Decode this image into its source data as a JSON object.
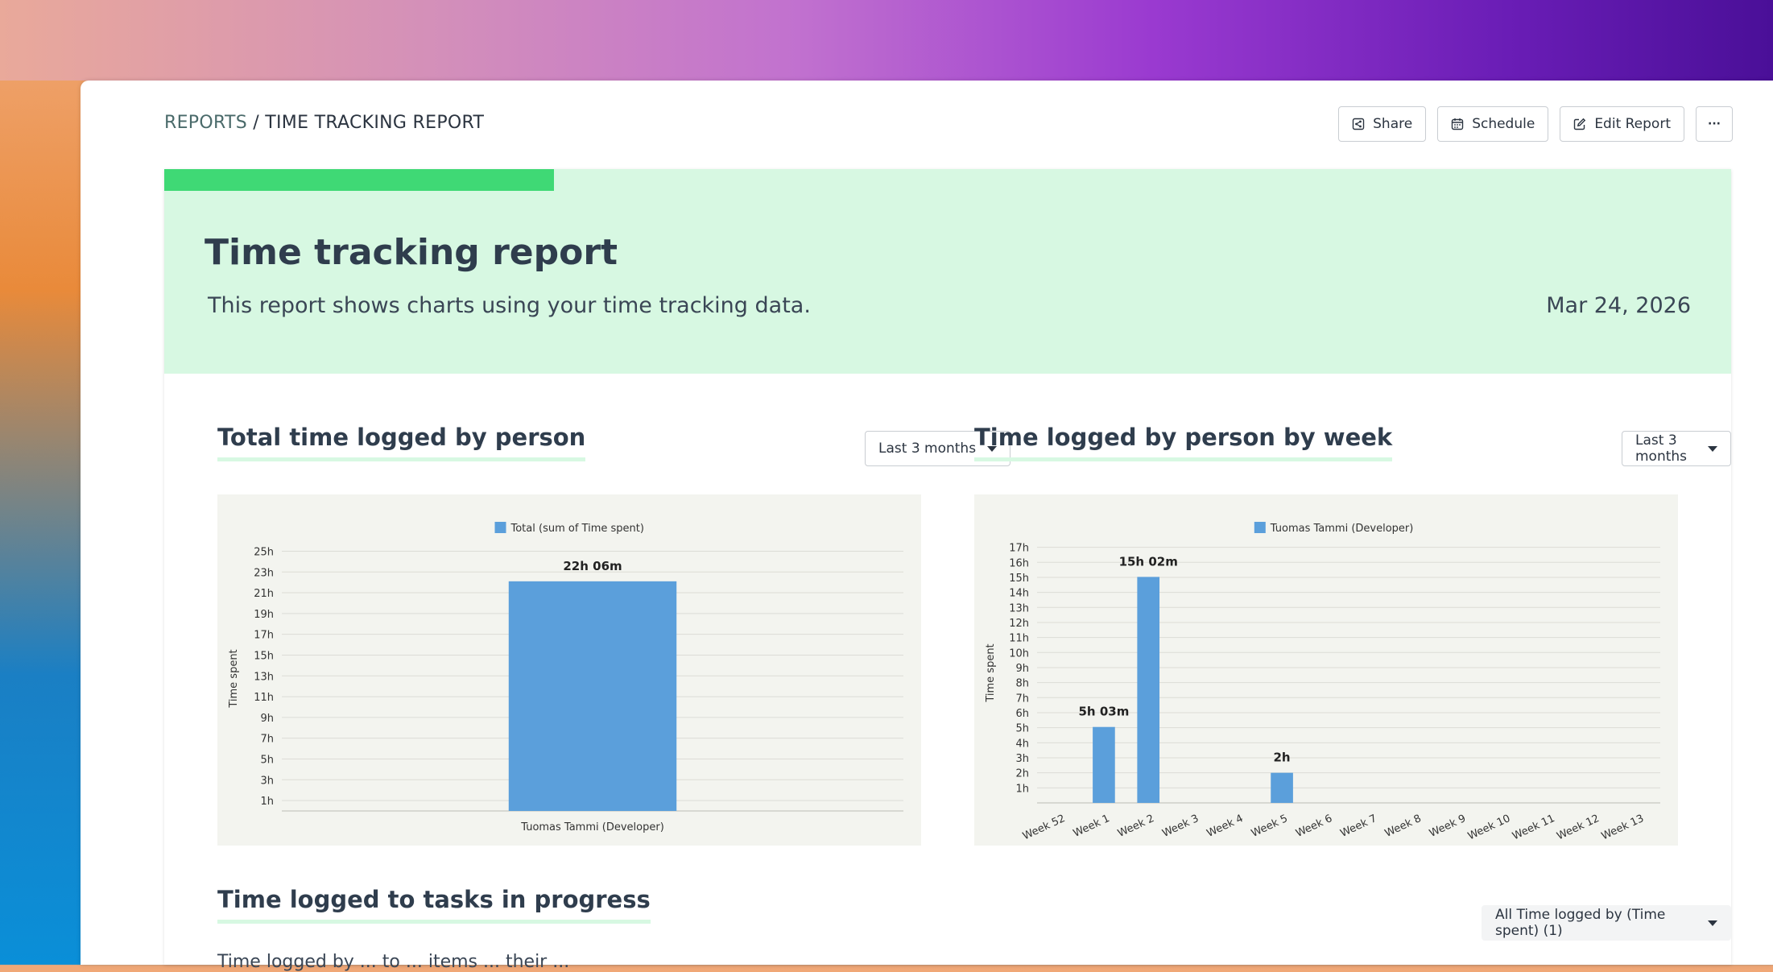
{
  "breadcrumb": {
    "parent": "REPORTS",
    "separator": " / ",
    "current": "TIME TRACKING REPORT"
  },
  "toolbar": {
    "share": "Share",
    "schedule": "Schedule",
    "edit": "Edit Report",
    "more": "···"
  },
  "hero": {
    "title": "Time tracking report",
    "description": "This report shows charts using your time tracking data.",
    "date": "Mar 24, 2026",
    "accent_color": "#3fd975",
    "background_color": "#d7f8e2"
  },
  "sections": {
    "total": {
      "title": "Total time logged by person",
      "range": "Last 3 months"
    },
    "weekly": {
      "title": "Time logged by person by week",
      "range": "Last 3 months"
    },
    "tasks": {
      "title": "Time logged to tasks in progress",
      "filter": "All Time logged by (Time spent) (1)",
      "subtitle": "Time logged by ... to ... items ... their ..."
    }
  },
  "chart_data": [
    {
      "type": "bar",
      "legend": "Total (sum of Time spent)",
      "ylabel": "Time spent",
      "yticks": [
        "1h",
        "3h",
        "5h",
        "7h",
        "9h",
        "11h",
        "13h",
        "15h",
        "17h",
        "19h",
        "21h",
        "23h",
        "25h"
      ],
      "ylim": [
        0,
        25.5
      ],
      "categories": [
        "Tuomas Tammi (Developer)"
      ],
      "values": [
        22.1
      ],
      "labels": [
        "22h 06m"
      ],
      "color": "#5b9fdb"
    },
    {
      "type": "bar",
      "legend": "Tuomas Tammi (Developer)",
      "ylabel": "Time spent",
      "yticks": [
        "1h",
        "2h",
        "3h",
        "4h",
        "5h",
        "6h",
        "7h",
        "8h",
        "9h",
        "10h",
        "11h",
        "12h",
        "13h",
        "14h",
        "15h",
        "16h",
        "17h"
      ],
      "ylim": [
        0,
        17.3
      ],
      "categories": [
        "Week 52",
        "Week 1",
        "Week 2",
        "Week 3",
        "Week 4",
        "Week 5",
        "Week 6",
        "Week 7",
        "Week 8",
        "Week 9",
        "Week 10",
        "Week 11",
        "Week 12",
        "Week 13"
      ],
      "values": [
        0,
        5.05,
        15.03,
        0,
        0,
        2,
        0,
        0,
        0,
        0,
        0,
        0,
        0,
        0
      ],
      "labels": [
        "",
        "5h 03m",
        "15h 02m",
        "",
        "",
        "2h",
        "",
        "",
        "",
        "",
        "",
        "",
        "",
        ""
      ],
      "color": "#5b9fdb"
    }
  ]
}
